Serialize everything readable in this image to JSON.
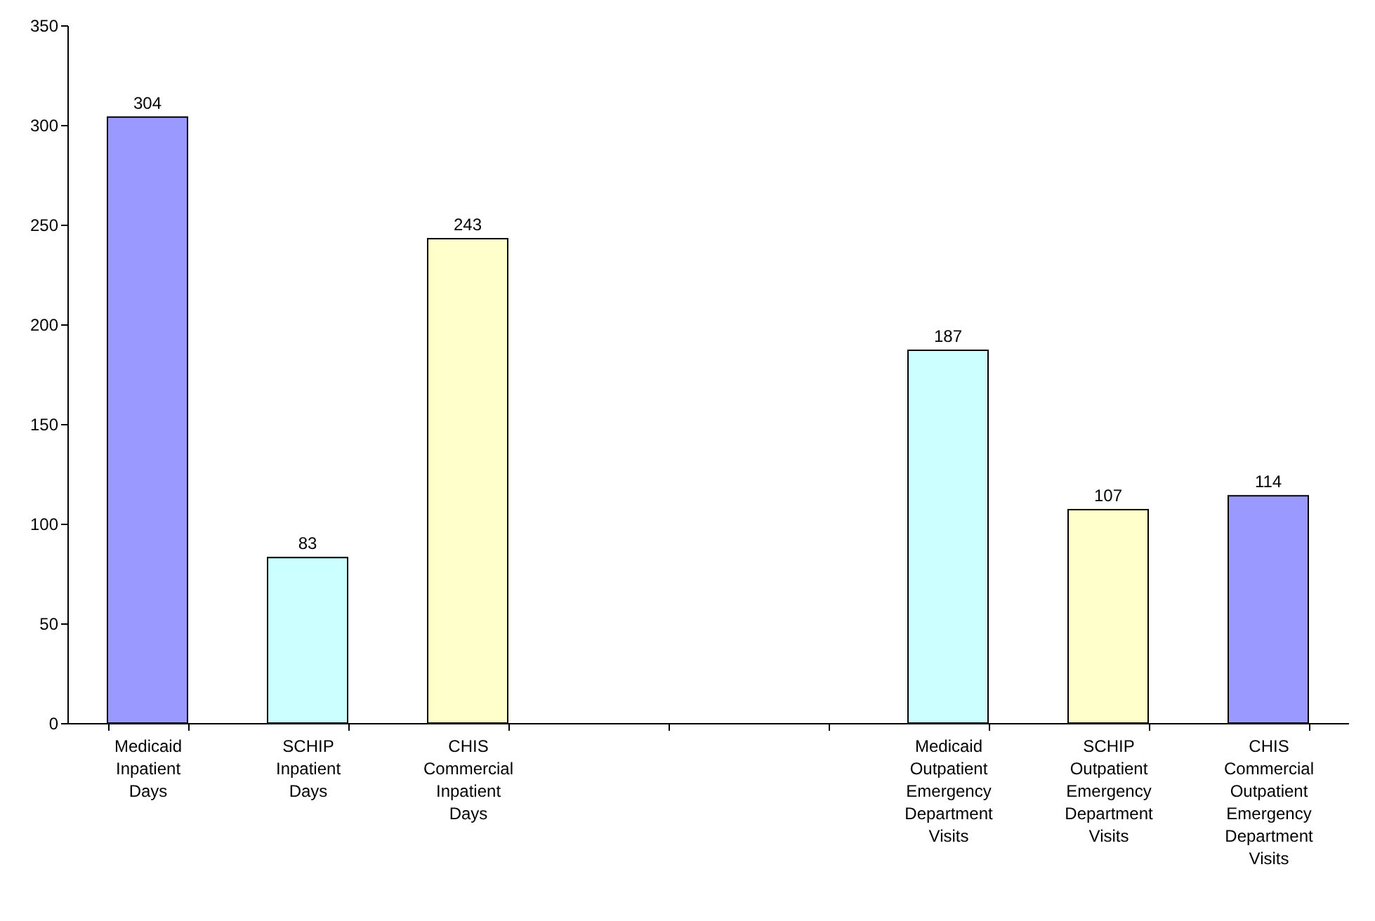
{
  "chart_data": {
    "type": "bar",
    "categories": [
      "Medicaid Inpatient Days",
      "SCHIP Inpatient Days",
      "CHIS Commercial Inpatient Days",
      null,
      null,
      "Medicaid Outpatient Emergency Department Visits",
      "SCHIP Outpatient Emergency Department Visits",
      "CHIS Commercial Outpatient Emergency Department Visits"
    ],
    "values": [
      304,
      83,
      243,
      null,
      null,
      187,
      107,
      114
    ],
    "colors": [
      "#9999ff",
      "#ccffff",
      "#ffffcc",
      null,
      null,
      "#ccffff",
      "#ffffcc",
      "#9999ff"
    ],
    "ylim": [
      0,
      350
    ],
    "yticks": [
      0,
      50,
      100,
      150,
      200,
      250,
      300,
      350
    ],
    "data_labels": true
  }
}
